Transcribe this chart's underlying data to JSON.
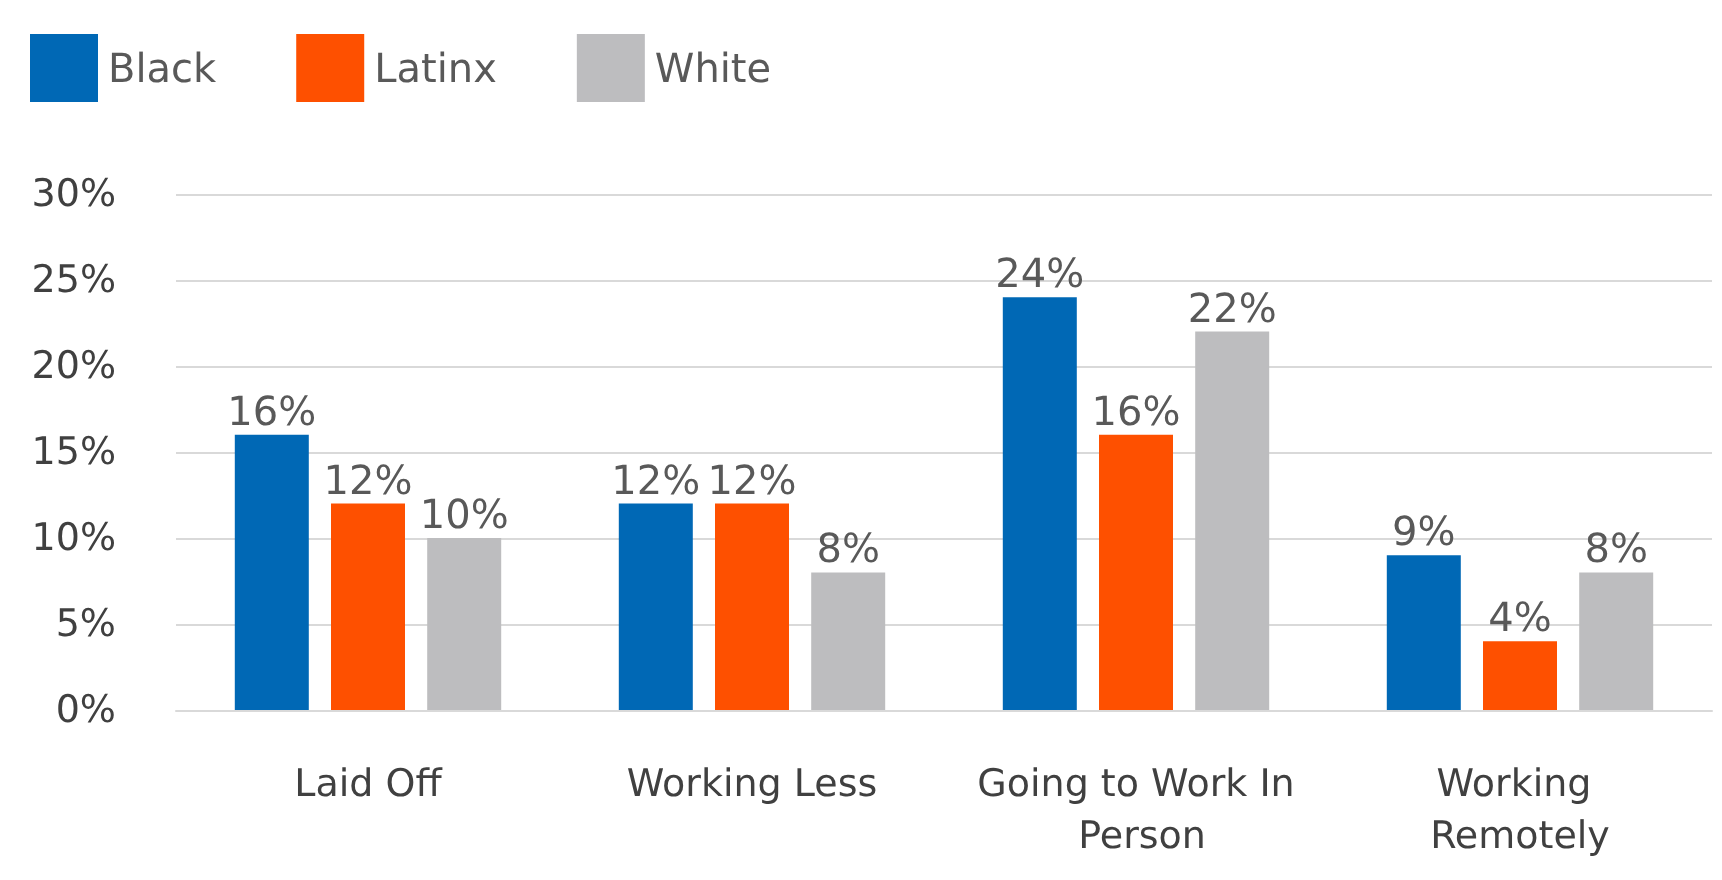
{
  "chart_data": {
    "type": "bar",
    "categories": [
      "Laid Off",
      "Working Less",
      "Going to Work In Person",
      "Working Remotely"
    ],
    "series": [
      {
        "name": "Black",
        "color": "#0068b5",
        "values": [
          16,
          12,
          24,
          9
        ],
        "value_labels": [
          "16%",
          "12%",
          "24%",
          "9%"
        ]
      },
      {
        "name": "Latinx",
        "color": "#fe5000",
        "values": [
          12,
          12,
          16,
          4
        ],
        "value_labels": [
          "12%",
          "12%",
          "16%",
          "4%"
        ]
      },
      {
        "name": "White",
        "color": "#bdbdbf",
        "values": [
          10,
          8,
          22,
          8
        ],
        "value_labels": [
          "10%",
          "8%",
          "22%",
          "8%"
        ]
      }
    ],
    "ylim": [
      0,
      30
    ],
    "yticks": [
      {
        "value": 0,
        "label": "0%"
      },
      {
        "value": 5,
        "label": "5%"
      },
      {
        "value": 10,
        "label": "10%"
      },
      {
        "value": 15,
        "label": "15%"
      },
      {
        "value": 20,
        "label": "20%"
      },
      {
        "value": 25,
        "label": "25%"
      },
      {
        "value": 30,
        "label": "30%"
      }
    ],
    "grid": "y",
    "legend": "top left"
  }
}
